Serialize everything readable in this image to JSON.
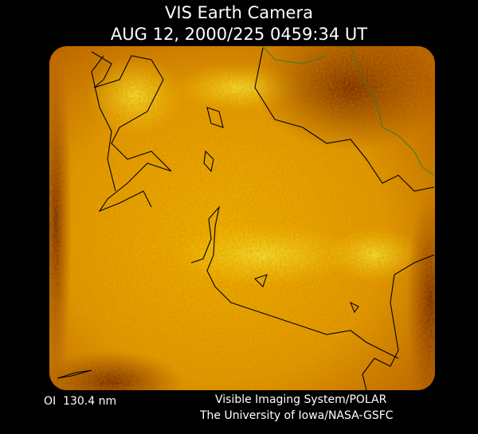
{
  "header": {
    "title": "VIS Earth Camera",
    "timestamp": "AUG 12, 2000/225 0459:34 UT"
  },
  "footer": {
    "filter": "OI  130.4 nm",
    "instrument": "Visible Imaging System/POLAR",
    "institution": "The University of Iowa/NASA-GSFC"
  }
}
